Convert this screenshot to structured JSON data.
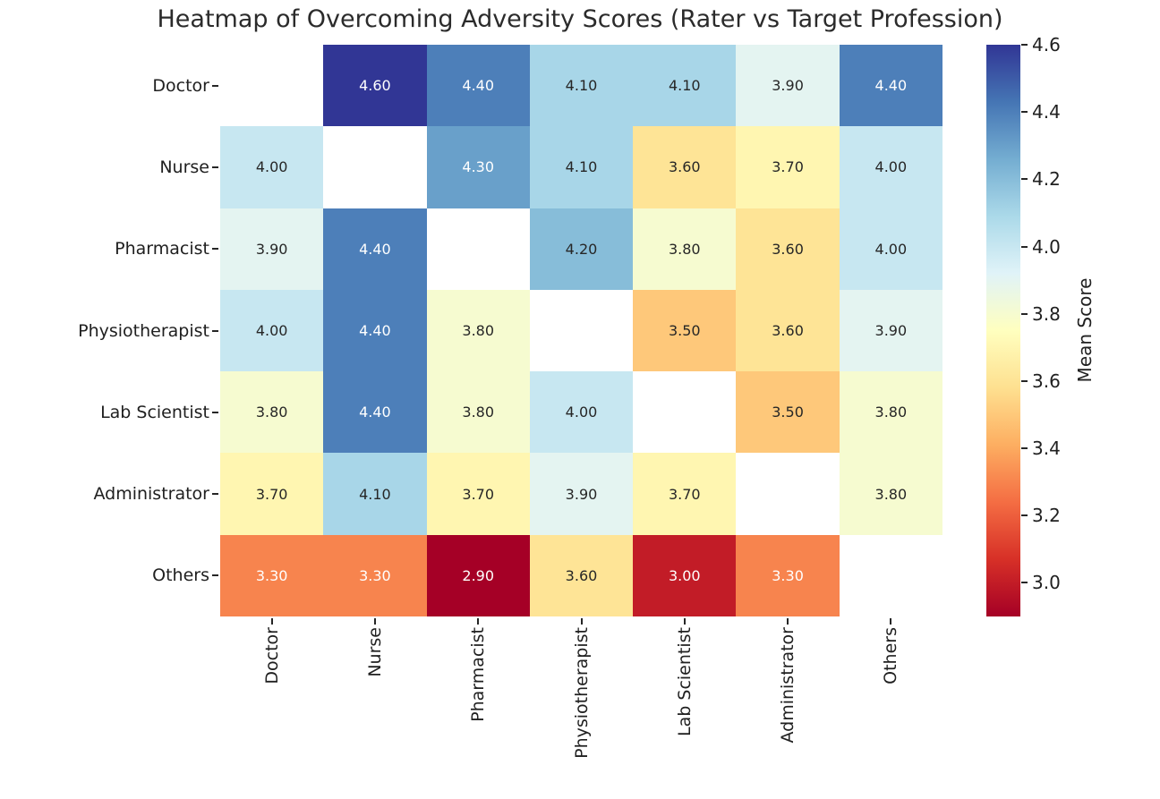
{
  "chart_data": {
    "type": "heatmap",
    "title": "Heatmap of Overcoming Adversity Scores (Rater vs Target Profession)",
    "categories_y": [
      "Doctor",
      "Nurse",
      "Pharmacist",
      "Physiotherapist",
      "Lab Scientist",
      "Administrator",
      "Others"
    ],
    "categories_x": [
      "Doctor",
      "Nurse",
      "Pharmacist",
      "Physiotherapist",
      "Lab Scientist",
      "Administrator",
      "Others"
    ],
    "values": [
      [
        null,
        4.6,
        4.4,
        4.1,
        4.1,
        3.9,
        4.4
      ],
      [
        4.0,
        null,
        4.3,
        4.1,
        3.6,
        3.7,
        4.0
      ],
      [
        3.9,
        4.4,
        null,
        4.2,
        3.8,
        3.6,
        4.0
      ],
      [
        4.0,
        4.4,
        3.8,
        null,
        3.5,
        3.6,
        3.9
      ],
      [
        3.8,
        4.4,
        3.8,
        4.0,
        null,
        3.5,
        3.8
      ],
      [
        3.7,
        4.1,
        3.7,
        3.9,
        3.7,
        null,
        3.8
      ],
      [
        3.3,
        3.3,
        2.9,
        3.6,
        3.0,
        3.3,
        null
      ]
    ],
    "annotation_decimals": 2,
    "colorbar": {
      "label": "Mean Score",
      "ticks": [
        4.6,
        4.4,
        4.2,
        4.0,
        3.8,
        3.6,
        3.4,
        3.2,
        3.0
      ],
      "vmin": 2.9,
      "vmax": 4.6
    },
    "colormap": {
      "name": "RdYlBu",
      "stops": [
        "#a50026",
        "#d73027",
        "#f46d43",
        "#fdae61",
        "#fee090",
        "#ffffbf",
        "#e0f3f8",
        "#abd9e9",
        "#74add1",
        "#4575b4",
        "#313695"
      ]
    },
    "colors": {
      "background": "#ffffff",
      "nan_cell": "#ffffff",
      "annotation_dark": "#262626",
      "annotation_light": "#ffffff",
      "tick": "#262626",
      "title_text": "#2b2b2b"
    }
  }
}
